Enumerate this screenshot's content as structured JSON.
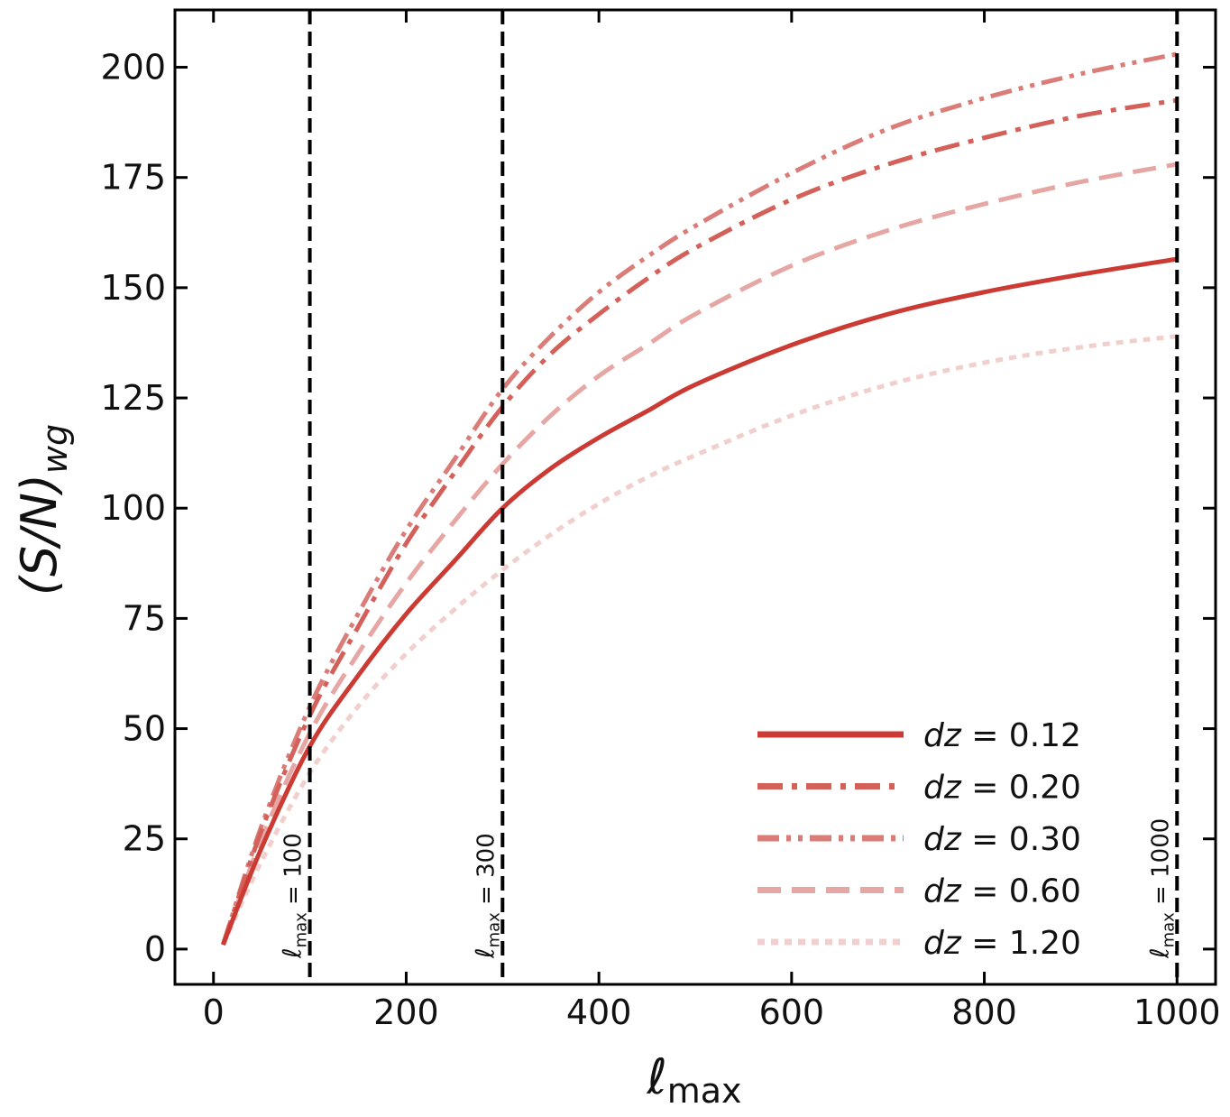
{
  "chart_data": {
    "type": "line",
    "title": "",
    "xlabel": "ℓmax",
    "ylabel": "(S/N)wg",
    "xlim": [
      -40,
      1040
    ],
    "ylim": [
      -8,
      213
    ],
    "xticks": [
      0,
      200,
      400,
      600,
      800,
      1000
    ],
    "yticks": [
      0,
      25,
      50,
      75,
      100,
      125,
      150,
      175,
      200
    ],
    "grid": false,
    "legend_position": "lower-right",
    "series": [
      {
        "name": "dz = 0.12",
        "color": "#cc3b33",
        "style": "solid",
        "x": [
          10,
          50,
          100,
          150,
          200,
          250,
          300,
          350,
          400,
          450,
          500,
          600,
          700,
          800,
          900,
          1000
        ],
        "y": [
          1,
          23,
          46,
          62,
          76,
          88,
          100,
          109,
          116,
          122,
          128,
          137,
          144,
          149,
          153,
          156.5
        ]
      },
      {
        "name": "dz = 0.20",
        "color": "#d4605a",
        "style": "dash-dot",
        "x": [
          10,
          50,
          100,
          150,
          200,
          250,
          300,
          350,
          400,
          450,
          500,
          600,
          700,
          800,
          900,
          1000
        ],
        "y": [
          1,
          27,
          53,
          73,
          92,
          108,
          123,
          135,
          144,
          152,
          159,
          170,
          178,
          184,
          189,
          192.5
        ]
      },
      {
        "name": "dz = 0.30",
        "color": "#da7c78",
        "style": "dash-dot-dot",
        "x": [
          10,
          50,
          100,
          150,
          200,
          250,
          300,
          350,
          400,
          450,
          500,
          600,
          700,
          800,
          900,
          1000
        ],
        "y": [
          1,
          28,
          55,
          76,
          95,
          111,
          127,
          139,
          149,
          157,
          164,
          176,
          186,
          193,
          198.5,
          203
        ]
      },
      {
        "name": "dz = 0.60",
        "color": "#e6a7a4",
        "style": "dashed",
        "x": [
          10,
          50,
          100,
          150,
          200,
          250,
          300,
          350,
          400,
          450,
          500,
          600,
          700,
          800,
          900,
          1000
        ],
        "y": [
          1,
          25,
          49,
          67,
          83,
          97,
          110,
          121,
          130,
          137,
          144,
          155,
          163,
          169,
          174,
          178
        ]
      },
      {
        "name": "dz = 1.20",
        "color": "#f1cfcd",
        "style": "dotted",
        "x": [
          10,
          50,
          100,
          150,
          200,
          250,
          300,
          350,
          400,
          450,
          500,
          600,
          700,
          800,
          900,
          1000
        ],
        "y": [
          1,
          20,
          40,
          55,
          67,
          77,
          86,
          94,
          101,
          107,
          112,
          121,
          128,
          133,
          136.5,
          139
        ]
      }
    ],
    "vlines": [
      {
        "x": 100,
        "label_main": "ℓ",
        "label_sub": "max",
        "label_rest": " = 100"
      },
      {
        "x": 300,
        "label_main": "ℓ",
        "label_sub": "max",
        "label_rest": " = 300"
      },
      {
        "x": 1000,
        "label_main": "ℓ",
        "label_sub": "max",
        "label_rest": " = 1000"
      }
    ]
  },
  "axis": {
    "xlabel_main": "ℓ",
    "xlabel_sub": "max",
    "ylabel_main": "(S/N)",
    "ylabel_sub": "wg"
  },
  "legend": {
    "entries": [
      {
        "var": "dz",
        "rest": " = 0.12"
      },
      {
        "var": "dz",
        "rest": " = 0.20"
      },
      {
        "var": "dz",
        "rest": " = 0.30"
      },
      {
        "var": "dz",
        "rest": " = 0.60"
      },
      {
        "var": "dz",
        "rest": " = 1.20"
      }
    ]
  }
}
